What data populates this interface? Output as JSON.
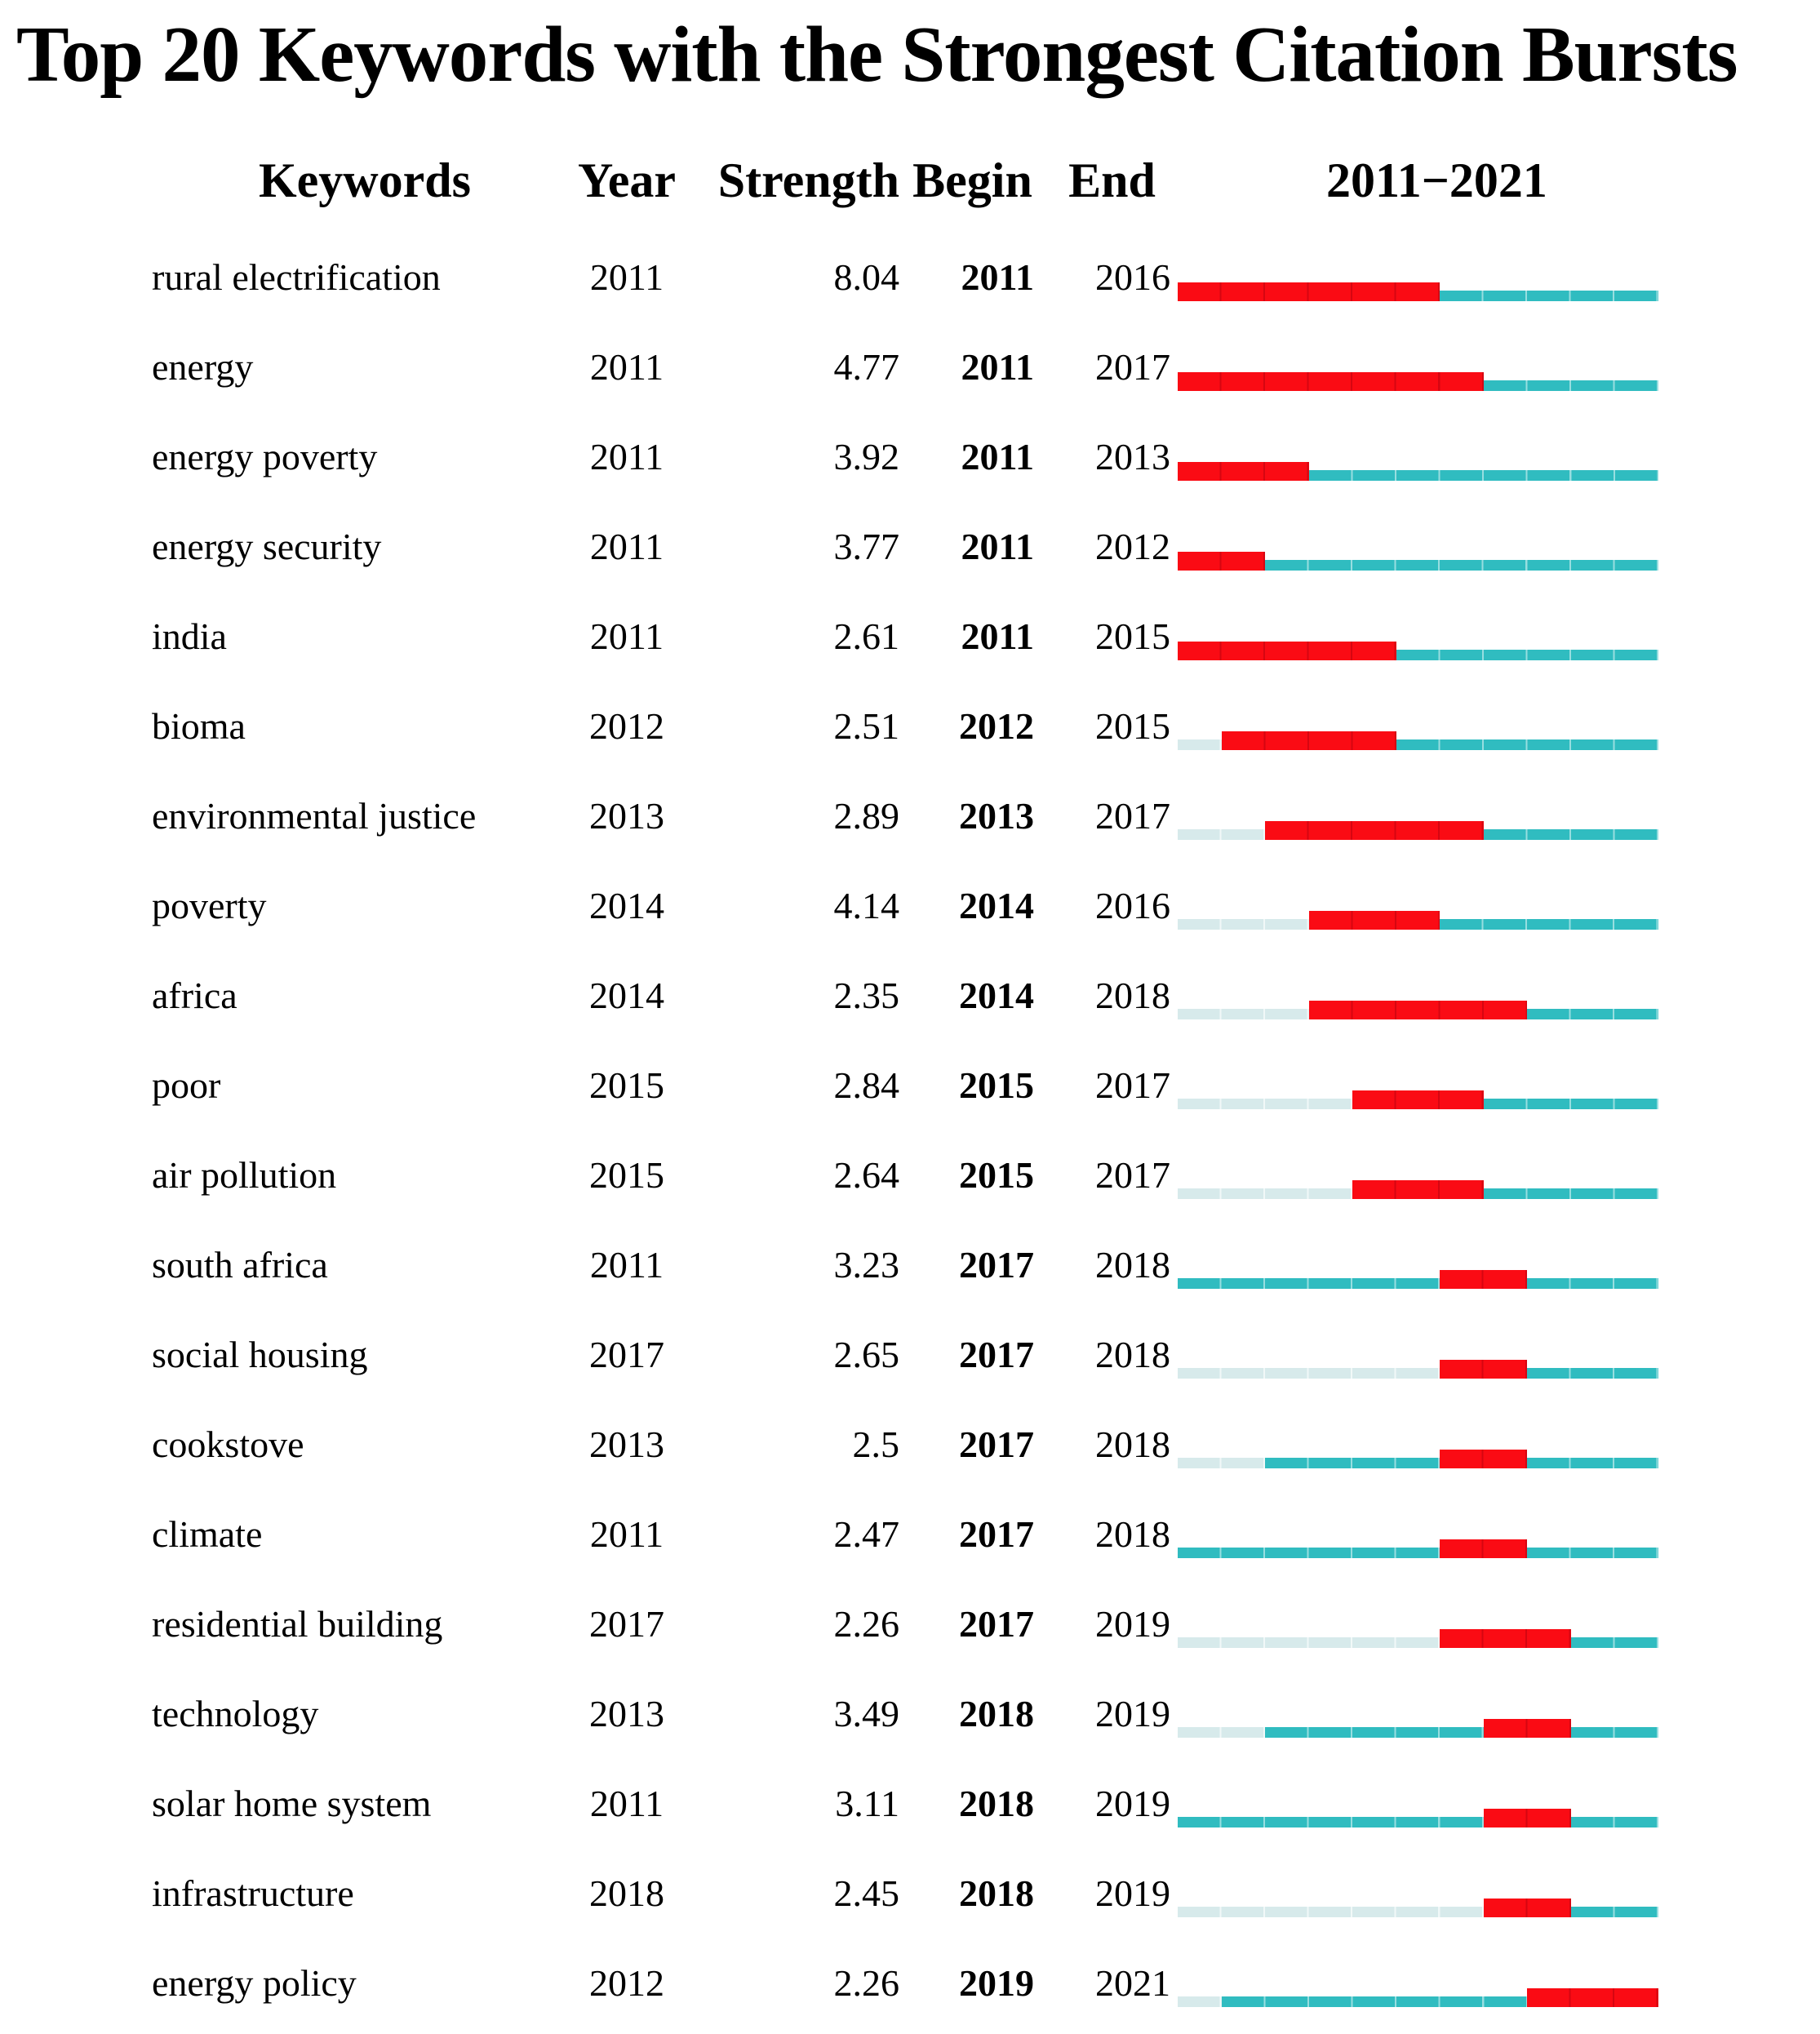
{
  "title": "Top 20 Keywords with the Strongest Citation Bursts",
  "columns": {
    "keyword": "Keywords",
    "year": "Year",
    "strength": "Strength",
    "begin": "Begin",
    "end": "End",
    "range": "2011−2021"
  },
  "colors": {
    "burst": "#fa0b14",
    "active": "#30bcc0",
    "pre_appearance": "#d7eaeb"
  },
  "chart_data": {
    "type": "bar",
    "subtype": "citation-burst-timeline",
    "timeline": {
      "start": 2011,
      "end": 2021
    },
    "legend": {
      "burst_segment": "burst period (red)",
      "active_segment": "keyword active (teal)",
      "pre_appearance_segment": "before first appearance (pale)"
    },
    "rows": [
      {
        "keyword": "rural electrification",
        "year": 2011,
        "strength": "8.04",
        "begin": 2011,
        "end": 2016
      },
      {
        "keyword": "energy",
        "year": 2011,
        "strength": "4.77",
        "begin": 2011,
        "end": 2017
      },
      {
        "keyword": "energy poverty",
        "year": 2011,
        "strength": "3.92",
        "begin": 2011,
        "end": 2013
      },
      {
        "keyword": "energy security",
        "year": 2011,
        "strength": "3.77",
        "begin": 2011,
        "end": 2012
      },
      {
        "keyword": "india",
        "year": 2011,
        "strength": "2.61",
        "begin": 2011,
        "end": 2015
      },
      {
        "keyword": "bioma",
        "year": 2012,
        "strength": "2.51",
        "begin": 2012,
        "end": 2015
      },
      {
        "keyword": "environmental justice",
        "year": 2013,
        "strength": "2.89",
        "begin": 2013,
        "end": 2017
      },
      {
        "keyword": "poverty",
        "year": 2014,
        "strength": "4.14",
        "begin": 2014,
        "end": 2016
      },
      {
        "keyword": "africa",
        "year": 2014,
        "strength": "2.35",
        "begin": 2014,
        "end": 2018
      },
      {
        "keyword": "poor",
        "year": 2015,
        "strength": "2.84",
        "begin": 2015,
        "end": 2017
      },
      {
        "keyword": "air pollution",
        "year": 2015,
        "strength": "2.64",
        "begin": 2015,
        "end": 2017
      },
      {
        "keyword": "south africa",
        "year": 2011,
        "strength": "3.23",
        "begin": 2017,
        "end": 2018
      },
      {
        "keyword": "social housing",
        "year": 2017,
        "strength": "2.65",
        "begin": 2017,
        "end": 2018
      },
      {
        "keyword": "cookstove",
        "year": 2013,
        "strength": "2.5",
        "begin": 2017,
        "end": 2018
      },
      {
        "keyword": "climate",
        "year": 2011,
        "strength": "2.47",
        "begin": 2017,
        "end": 2018
      },
      {
        "keyword": "residential building",
        "year": 2017,
        "strength": "2.26",
        "begin": 2017,
        "end": 2019
      },
      {
        "keyword": "technology",
        "year": 2013,
        "strength": "3.49",
        "begin": 2018,
        "end": 2019
      },
      {
        "keyword": "solar home system",
        "year": 2011,
        "strength": "3.11",
        "begin": 2018,
        "end": 2019
      },
      {
        "keyword": "infrastructure",
        "year": 2018,
        "strength": "2.45",
        "begin": 2018,
        "end": 2019
      },
      {
        "keyword": "energy policy",
        "year": 2012,
        "strength": "2.26",
        "begin": 2019,
        "end": 2021
      }
    ]
  }
}
